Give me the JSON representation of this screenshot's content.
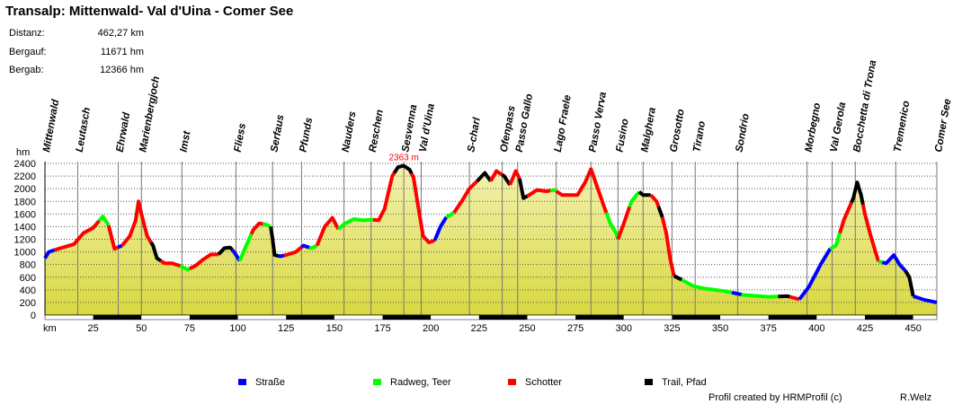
{
  "title": "Transalp: Mittenwald- Val d'Uina - Comer See",
  "stats": [
    {
      "label": "Distanz:",
      "value": "462,27 km"
    },
    {
      "label": "Bergauf:",
      "value": "11671 hm"
    },
    {
      "label": "Bergab:",
      "value": "12366 hm"
    }
  ],
  "footer": {
    "credit": "Profil created by HRMProfil (c)",
    "author": "R.Welz"
  },
  "colors": {
    "strasse": "#0000ff",
    "radweg": "#00ff00",
    "schotter": "#ff0000",
    "trail": "#000000",
    "fill_top": "#f4f2b0",
    "fill_bottom": "#d8d840",
    "peak": "#ff0000"
  },
  "chart_data": {
    "type": "area",
    "title": "Transalp: Mittenwald- Val d'Uina - Comer See",
    "xlabel": "km",
    "ylabel": "hm",
    "xlim": [
      0,
      462.27
    ],
    "ylim": [
      0,
      2400
    ],
    "x_ticks": [
      25,
      50,
      75,
      100,
      125,
      150,
      175,
      200,
      225,
      250,
      275,
      300,
      325,
      350,
      375,
      400,
      425,
      450
    ],
    "y_ticks": [
      0,
      200,
      400,
      600,
      800,
      1000,
      1200,
      1400,
      1600,
      1800,
      2000,
      2200,
      2400
    ],
    "max_label": "2363 m",
    "max_point": {
      "x": 186,
      "y": 2363
    },
    "points": [
      [
        0,
        900
      ],
      [
        2,
        1000
      ],
      [
        8,
        1060
      ],
      [
        15,
        1120
      ],
      [
        20,
        1300
      ],
      [
        25,
        1380
      ],
      [
        30,
        1560
      ],
      [
        33,
        1420
      ],
      [
        36,
        1050
      ],
      [
        40,
        1100
      ],
      [
        44,
        1250
      ],
      [
        47,
        1500
      ],
      [
        48.5,
        1800
      ],
      [
        50,
        1600
      ],
      [
        53,
        1250
      ],
      [
        56,
        1100
      ],
      [
        58,
        900
      ],
      [
        62,
        820
      ],
      [
        66,
        820
      ],
      [
        70,
        780
      ],
      [
        74,
        720
      ],
      [
        78,
        780
      ],
      [
        82,
        880
      ],
      [
        86,
        960
      ],
      [
        90,
        960
      ],
      [
        93,
        1060
      ],
      [
        96,
        1070
      ],
      [
        98,
        1000
      ],
      [
        101,
        860
      ],
      [
        104,
        1080
      ],
      [
        108,
        1350
      ],
      [
        111,
        1450
      ],
      [
        114,
        1440
      ],
      [
        117,
        1400
      ],
      [
        118,
        1200
      ],
      [
        119,
        950
      ],
      [
        122,
        930
      ],
      [
        126,
        960
      ],
      [
        130,
        1000
      ],
      [
        134,
        1100
      ],
      [
        138,
        1060
      ],
      [
        141,
        1100
      ],
      [
        145,
        1400
      ],
      [
        149,
        1540
      ],
      [
        152,
        1360
      ],
      [
        155,
        1440
      ],
      [
        160,
        1520
      ],
      [
        165,
        1500
      ],
      [
        169,
        1510
      ],
      [
        173,
        1500
      ],
      [
        176,
        1680
      ],
      [
        180,
        2200
      ],
      [
        183,
        2340
      ],
      [
        186,
        2363
      ],
      [
        189,
        2300
      ],
      [
        191,
        2180
      ],
      [
        193,
        1800
      ],
      [
        196,
        1250
      ],
      [
        199,
        1150
      ],
      [
        202,
        1180
      ],
      [
        205,
        1400
      ],
      [
        208,
        1550
      ],
      [
        212,
        1620
      ],
      [
        216,
        1800
      ],
      [
        220,
        2000
      ],
      [
        224,
        2120
      ],
      [
        228,
        2250
      ],
      [
        231,
        2120
      ],
      [
        234,
        2280
      ],
      [
        238,
        2200
      ],
      [
        241,
        2060
      ],
      [
        244,
        2280
      ],
      [
        246,
        2160
      ],
      [
        248,
        1850
      ],
      [
        251,
        1900
      ],
      [
        255,
        1980
      ],
      [
        260,
        1960
      ],
      [
        264,
        1980
      ],
      [
        268,
        1900
      ],
      [
        276,
        1900
      ],
      [
        280,
        2100
      ],
      [
        283,
        2310
      ],
      [
        286,
        2050
      ],
      [
        290,
        1700
      ],
      [
        293,
        1450
      ],
      [
        296,
        1300
      ],
      [
        297,
        1200
      ],
      [
        300,
        1450
      ],
      [
        304,
        1800
      ],
      [
        308,
        1950
      ],
      [
        310,
        1900
      ],
      [
        314,
        1900
      ],
      [
        317,
        1800
      ],
      [
        320,
        1550
      ],
      [
        322,
        1300
      ],
      [
        324,
        900
      ],
      [
        326,
        620
      ],
      [
        330,
        560
      ],
      [
        336,
        460
      ],
      [
        342,
        420
      ],
      [
        352,
        380
      ],
      [
        362,
        320
      ],
      [
        375,
        290
      ],
      [
        385,
        300
      ],
      [
        391,
        250
      ],
      [
        396,
        450
      ],
      [
        402,
        800
      ],
      [
        407,
        1050
      ],
      [
        410,
        1100
      ],
      [
        414,
        1500
      ],
      [
        419,
        1850
      ],
      [
        421,
        2100
      ],
      [
        423,
        1900
      ],
      [
        425,
        1600
      ],
      [
        428,
        1250
      ],
      [
        432,
        850
      ],
      [
        436,
        820
      ],
      [
        440,
        950
      ],
      [
        443,
        800
      ],
      [
        446,
        700
      ],
      [
        448,
        600
      ],
      [
        450,
        300
      ],
      [
        453,
        270
      ],
      [
        456,
        240
      ],
      [
        462.27,
        200
      ]
    ],
    "surface_segments": [
      {
        "from": 0,
        "to": 5,
        "type": "strasse"
      },
      {
        "from": 5,
        "to": 28,
        "type": "schotter"
      },
      {
        "from": 28,
        "to": 33,
        "type": "radweg"
      },
      {
        "from": 33,
        "to": 38,
        "type": "schotter"
      },
      {
        "from": 38,
        "to": 40,
        "type": "strasse"
      },
      {
        "from": 40,
        "to": 55,
        "type": "schotter"
      },
      {
        "from": 55,
        "to": 60,
        "type": "trail"
      },
      {
        "from": 60,
        "to": 70,
        "type": "schotter"
      },
      {
        "from": 70,
        "to": 75,
        "type": "radweg"
      },
      {
        "from": 75,
        "to": 90,
        "type": "schotter"
      },
      {
        "from": 90,
        "to": 97,
        "type": "trail"
      },
      {
        "from": 97,
        "to": 101,
        "type": "strasse"
      },
      {
        "from": 101,
        "to": 107,
        "type": "radweg"
      },
      {
        "from": 107,
        "to": 113,
        "type": "schotter"
      },
      {
        "from": 113,
        "to": 117,
        "type": "radweg"
      },
      {
        "from": 117,
        "to": 121,
        "type": "trail"
      },
      {
        "from": 121,
        "to": 124,
        "type": "strasse"
      },
      {
        "from": 124,
        "to": 133,
        "type": "schotter"
      },
      {
        "from": 133,
        "to": 137,
        "type": "strasse"
      },
      {
        "from": 137,
        "to": 141,
        "type": "radweg"
      },
      {
        "from": 141,
        "to": 152,
        "type": "schotter"
      },
      {
        "from": 152,
        "to": 170,
        "type": "radweg"
      },
      {
        "from": 170,
        "to": 181,
        "type": "schotter"
      },
      {
        "from": 181,
        "to": 190,
        "type": "trail"
      },
      {
        "from": 190,
        "to": 202,
        "type": "schotter"
      },
      {
        "from": 202,
        "to": 208,
        "type": "strasse"
      },
      {
        "from": 208,
        "to": 212,
        "type": "radweg"
      },
      {
        "from": 212,
        "to": 224,
        "type": "schotter"
      },
      {
        "from": 224,
        "to": 231,
        "type": "trail"
      },
      {
        "from": 231,
        "to": 237,
        "type": "schotter"
      },
      {
        "from": 237,
        "to": 241,
        "type": "trail"
      },
      {
        "from": 241,
        "to": 246,
        "type": "schotter"
      },
      {
        "from": 246,
        "to": 250,
        "type": "trail"
      },
      {
        "from": 250,
        "to": 262,
        "type": "schotter"
      },
      {
        "from": 262,
        "to": 265,
        "type": "radweg"
      },
      {
        "from": 265,
        "to": 291,
        "type": "schotter"
      },
      {
        "from": 291,
        "to": 297,
        "type": "radweg"
      },
      {
        "from": 297,
        "to": 303,
        "type": "schotter"
      },
      {
        "from": 303,
        "to": 308,
        "type": "radweg"
      },
      {
        "from": 308,
        "to": 314,
        "type": "trail"
      },
      {
        "from": 314,
        "to": 318,
        "type": "schotter"
      },
      {
        "from": 318,
        "to": 320,
        "type": "trail"
      },
      {
        "from": 320,
        "to": 326,
        "type": "schotter"
      },
      {
        "from": 326,
        "to": 330,
        "type": "trail"
      },
      {
        "from": 330,
        "to": 356,
        "type": "radweg"
      },
      {
        "from": 356,
        "to": 361,
        "type": "strasse"
      },
      {
        "from": 361,
        "to": 380,
        "type": "radweg"
      },
      {
        "from": 380,
        "to": 386,
        "type": "trail"
      },
      {
        "from": 386,
        "to": 391,
        "type": "schotter"
      },
      {
        "from": 391,
        "to": 407,
        "type": "strasse"
      },
      {
        "from": 407,
        "to": 412,
        "type": "radweg"
      },
      {
        "from": 412,
        "to": 418,
        "type": "schotter"
      },
      {
        "from": 418,
        "to": 424,
        "type": "trail"
      },
      {
        "from": 424,
        "to": 432,
        "type": "schotter"
      },
      {
        "from": 432,
        "to": 434,
        "type": "radweg"
      },
      {
        "from": 434,
        "to": 446,
        "type": "strasse"
      },
      {
        "from": 446,
        "to": 450,
        "type": "trail"
      },
      {
        "from": 450,
        "to": 462.27,
        "type": "strasse"
      }
    ],
    "waypoints": [
      {
        "name": "Mittenwald",
        "km": 0
      },
      {
        "name": "Leutasch",
        "km": 17
      },
      {
        "name": "Ehrwald",
        "km": 38
      },
      {
        "name": "Marienbergjoch",
        "km": 50
      },
      {
        "name": "Imst",
        "km": 71
      },
      {
        "name": "Fliess",
        "km": 99
      },
      {
        "name": "Serfaus",
        "km": 118
      },
      {
        "name": "Pfunds",
        "km": 133
      },
      {
        "name": "Nauders",
        "km": 155
      },
      {
        "name": "Reschen",
        "km": 169
      },
      {
        "name": "Sesvenna",
        "km": 186
      },
      {
        "name": "Val d'Uina",
        "km": 195
      },
      {
        "name": "S-charl",
        "km": 220
      },
      {
        "name": "Ofenpass",
        "km": 237
      },
      {
        "name": "Passo Gallo",
        "km": 245
      },
      {
        "name": "Lago Fraele",
        "km": 265
      },
      {
        "name": "Passo Verva",
        "km": 283
      },
      {
        "name": "Fusino",
        "km": 297
      },
      {
        "name": "Malghera",
        "km": 310
      },
      {
        "name": "Grosotto",
        "km": 325
      },
      {
        "name": "Tirano",
        "km": 337
      },
      {
        "name": "Sondrio",
        "km": 359
      },
      {
        "name": "Morbegno",
        "km": 395
      },
      {
        "name": "Val Gerola",
        "km": 408
      },
      {
        "name": "Bocchetta di Trona",
        "km": 420
      },
      {
        "name": "Tremenico",
        "km": 441
      },
      {
        "name": "Comer See",
        "km": 462.27
      }
    ],
    "legend": [
      {
        "label": "Straße",
        "type": "strasse"
      },
      {
        "label": "Radweg, Teer",
        "type": "radweg"
      },
      {
        "label": "Schotter",
        "type": "schotter"
      },
      {
        "label": "Trail, Pfad",
        "type": "trail"
      }
    ]
  }
}
